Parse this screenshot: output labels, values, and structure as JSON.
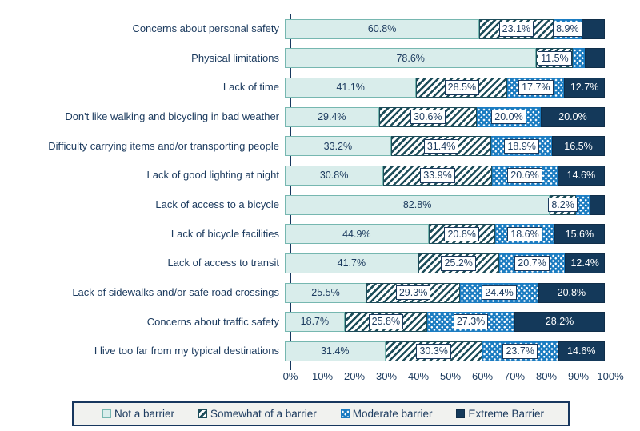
{
  "colors": {
    "text_navy": "#1b3a5e",
    "axis_navy": "#17375e",
    "not_barrier_fill": "#d9edeb",
    "not_barrier_border": "#76b7b0",
    "hatch_stripe": "#1d4d5a",
    "moderate_blue": "#1b7cc1",
    "extreme_navy": "#14395a",
    "extreme_border": "#102e49",
    "legend_background": "#f1f2ef"
  },
  "chart_data": {
    "type": "bar",
    "stacked": true,
    "orientation": "horizontal",
    "grid": false,
    "legend_position": "bottom",
    "xlim": [
      0,
      100
    ],
    "x_ticks": [
      "0%",
      "10%",
      "20%",
      "30%",
      "40%",
      "50%",
      "60%",
      "70%",
      "80%",
      "90%",
      "100%"
    ],
    "categories": [
      "Concerns about personal safety",
      "Physical limitations",
      "Lack of time",
      "Don't like walking and bicycling in bad weather",
      "Difficulty carrying items and/or transporting people",
      "Lack of good lighting at night",
      "Lack of access to a bicycle",
      "Lack of bicycle facilities",
      "Lack of access to transit",
      "Lack of sidewalks and/or safe road crossings",
      "Concerns about traffic safety",
      "I live too far from my typical destinations"
    ],
    "series": [
      {
        "name": "Not a barrier",
        "key": "not-a-barrier",
        "label_style": "lbl-plain",
        "values": [
          60.8,
          78.6,
          41.1,
          29.4,
          33.2,
          30.8,
          82.8,
          44.9,
          41.7,
          25.5,
          18.7,
          31.4
        ],
        "labels": [
          "60.8%",
          "78.6%",
          "41.1%",
          "29.4%",
          "33.2%",
          "30.8%",
          "82.8%",
          "44.9%",
          "41.7%",
          "25.5%",
          "18.7%",
          "31.4%"
        ]
      },
      {
        "name": "Somewhat of a barrier",
        "key": "somewhat-of-a-barrier",
        "label_style": "lbl-boxed",
        "values": [
          23.1,
          11.5,
          28.5,
          30.6,
          31.4,
          33.9,
          8.2,
          20.8,
          25.2,
          29.3,
          25.8,
          30.3
        ],
        "labels": [
          "23.1%",
          "11.5%",
          "28.5%",
          "30.6%",
          "31.4%",
          "33.9%",
          "8.2%",
          "20.8%",
          "25.2%",
          "29.3%",
          "25.8%",
          "30.3%"
        ]
      },
      {
        "name": "Moderate barrier",
        "key": "moderate-barrier",
        "label_style": "lbl-boxed",
        "values": [
          8.9,
          3.6,
          17.7,
          20.0,
          18.9,
          20.6,
          4.2,
          18.6,
          20.7,
          24.4,
          27.3,
          23.7
        ],
        "labels": [
          "8.9%",
          null,
          "17.7%",
          "20.0%",
          "18.9%",
          "20.6%",
          null,
          "18.6%",
          "20.7%",
          "24.4%",
          "27.3%",
          "23.7%"
        ]
      },
      {
        "name": "Extreme Barrier",
        "key": "extreme-barrier",
        "label_style": "lbl-light",
        "values": [
          7.2,
          6.3,
          12.7,
          20.0,
          16.5,
          14.6,
          4.8,
          15.6,
          12.4,
          20.8,
          28.2,
          14.6
        ],
        "labels": [
          null,
          null,
          "12.7%",
          "20.0%",
          "16.5%",
          "14.6%",
          null,
          "15.6%",
          "12.4%",
          "20.8%",
          "28.2%",
          "14.6%"
        ]
      }
    ]
  }
}
